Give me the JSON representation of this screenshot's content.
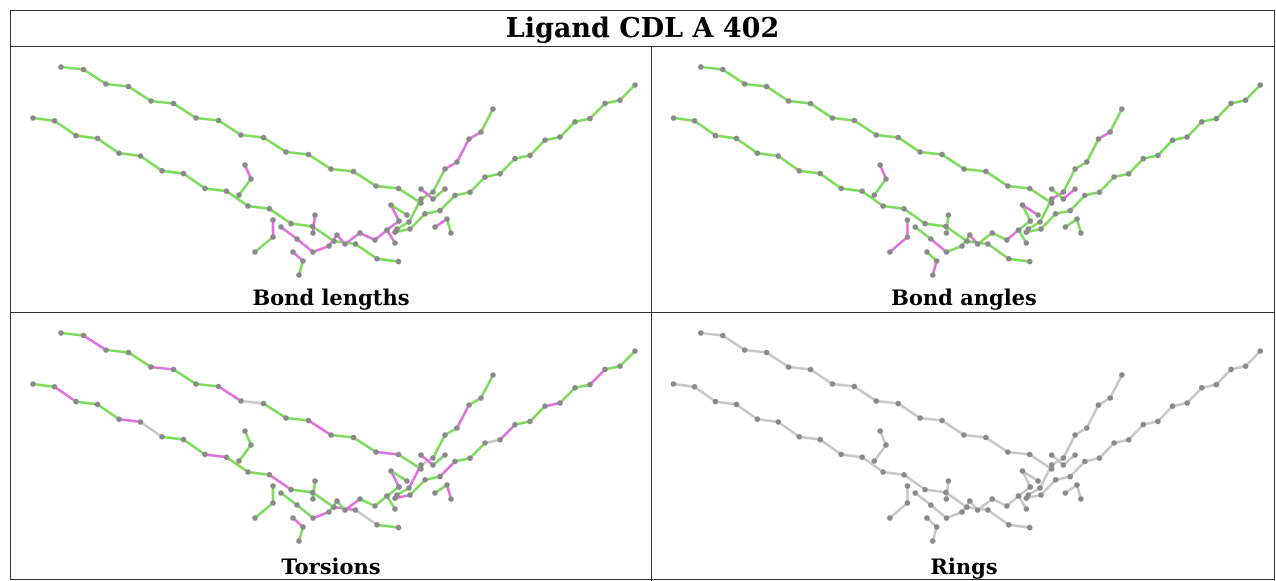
{
  "title": "Ligand CDL A 402",
  "panels": [
    {
      "caption": "Bond lengths",
      "scheme": "lengths"
    },
    {
      "caption": "Bond angles",
      "scheme": "angles"
    },
    {
      "caption": "Torsions",
      "scheme": "torsions"
    },
    {
      "caption": "Rings",
      "scheme": "rings"
    }
  ],
  "colors": {
    "ok": "#7cdc5c",
    "outlier": "#e070e0",
    "neutral": "#c8c8c8",
    "atom": "#8a8a8a"
  }
}
